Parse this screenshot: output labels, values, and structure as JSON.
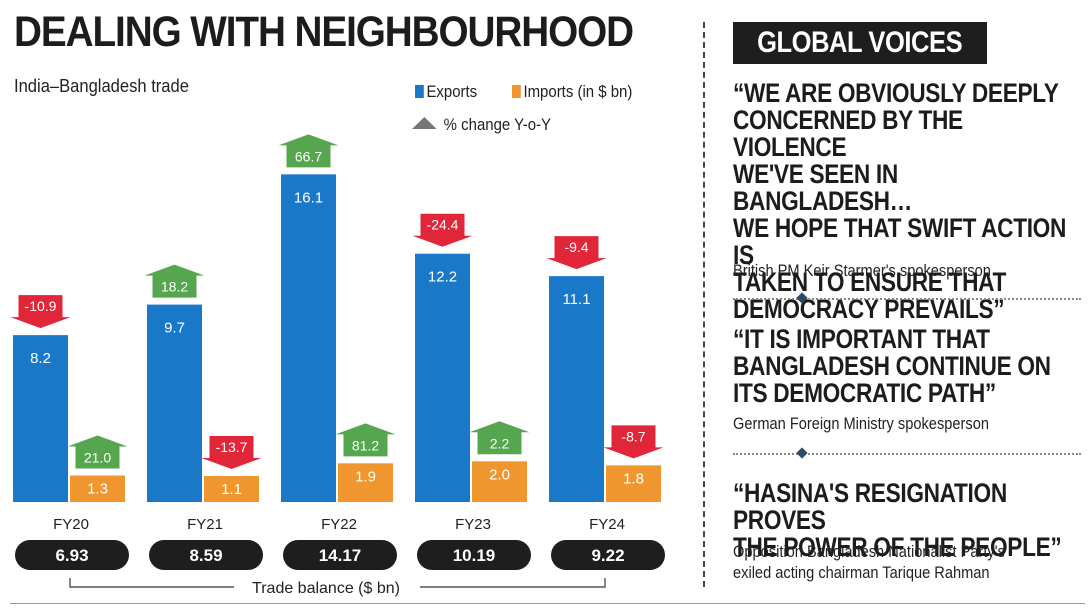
{
  "title": "DEALING WITH NEIGHBOURHOOD",
  "subtitle": "India–Bangladesh trade",
  "legend": {
    "exports": "Exports",
    "imports": "Imports (in $ bn)",
    "pct": "% change Y-o-Y"
  },
  "colors": {
    "exports": "#1a78c8",
    "imports": "#f0962e",
    "up": "#55a64f",
    "down": "#e02638",
    "pill": "#1e1e1e"
  },
  "chart_data": {
    "type": "bar",
    "title": "India–Bangladesh trade",
    "categories": [
      "FY20",
      "FY21",
      "FY22",
      "FY23",
      "FY24"
    ],
    "series": [
      {
        "name": "Exports",
        "values": [
          8.2,
          9.7,
          16.1,
          12.2,
          11.1
        ],
        "labels": [
          "8.2",
          "9.7",
          "16.1",
          "12.2",
          "11.1"
        ],
        "pct_change": [
          "-10.9",
          "18.2",
          "66.7",
          "-24.4",
          "-9.4"
        ]
      },
      {
        "name": "Imports (in $ bn)",
        "values": [
          1.3,
          1.1,
          1.9,
          2.0,
          1.8
        ],
        "labels": [
          "1.3",
          "1.1",
          "1.9",
          "2.0",
          "1.8"
        ],
        "pct_change": [
          "21.0",
          "-13.7",
          "81.2",
          "2.2",
          "-8.7"
        ]
      }
    ],
    "trade_balance": {
      "label": "Trade balance ($ bn)",
      "values": [
        "6.93",
        "8.59",
        "14.17",
        "10.19",
        "9.22"
      ]
    }
  },
  "global_voices": {
    "heading": "GLOBAL VOICES",
    "quotes": [
      {
        "text": "“WE ARE OBVIOUSLY DEEPLY\nCONCERNED BY THE VIOLENCE\nWE'VE SEEN IN BANGLADESH…\nWE HOPE THAT SWIFT ACTION IS\nTAKEN TO ENSURE THAT\nDEMOCRACY PREVAILS”",
        "attribution": "British PM Keir Starmer's spokesperson"
      },
      {
        "text": "“IT IS IMPORTANT THAT\nBANGLADESH CONTINUE ON\nITS DEMOCRATIC PATH”",
        "attribution": "German Foreign Ministry spokesperson"
      },
      {
        "text": "“HASINA'S RESIGNATION PROVES\nTHE POWER OF THE PEOPLE”",
        "attribution": "Opposition Bangladesh Nationalist Party's\nexiled acting chairman Tarique Rahman"
      }
    ]
  }
}
